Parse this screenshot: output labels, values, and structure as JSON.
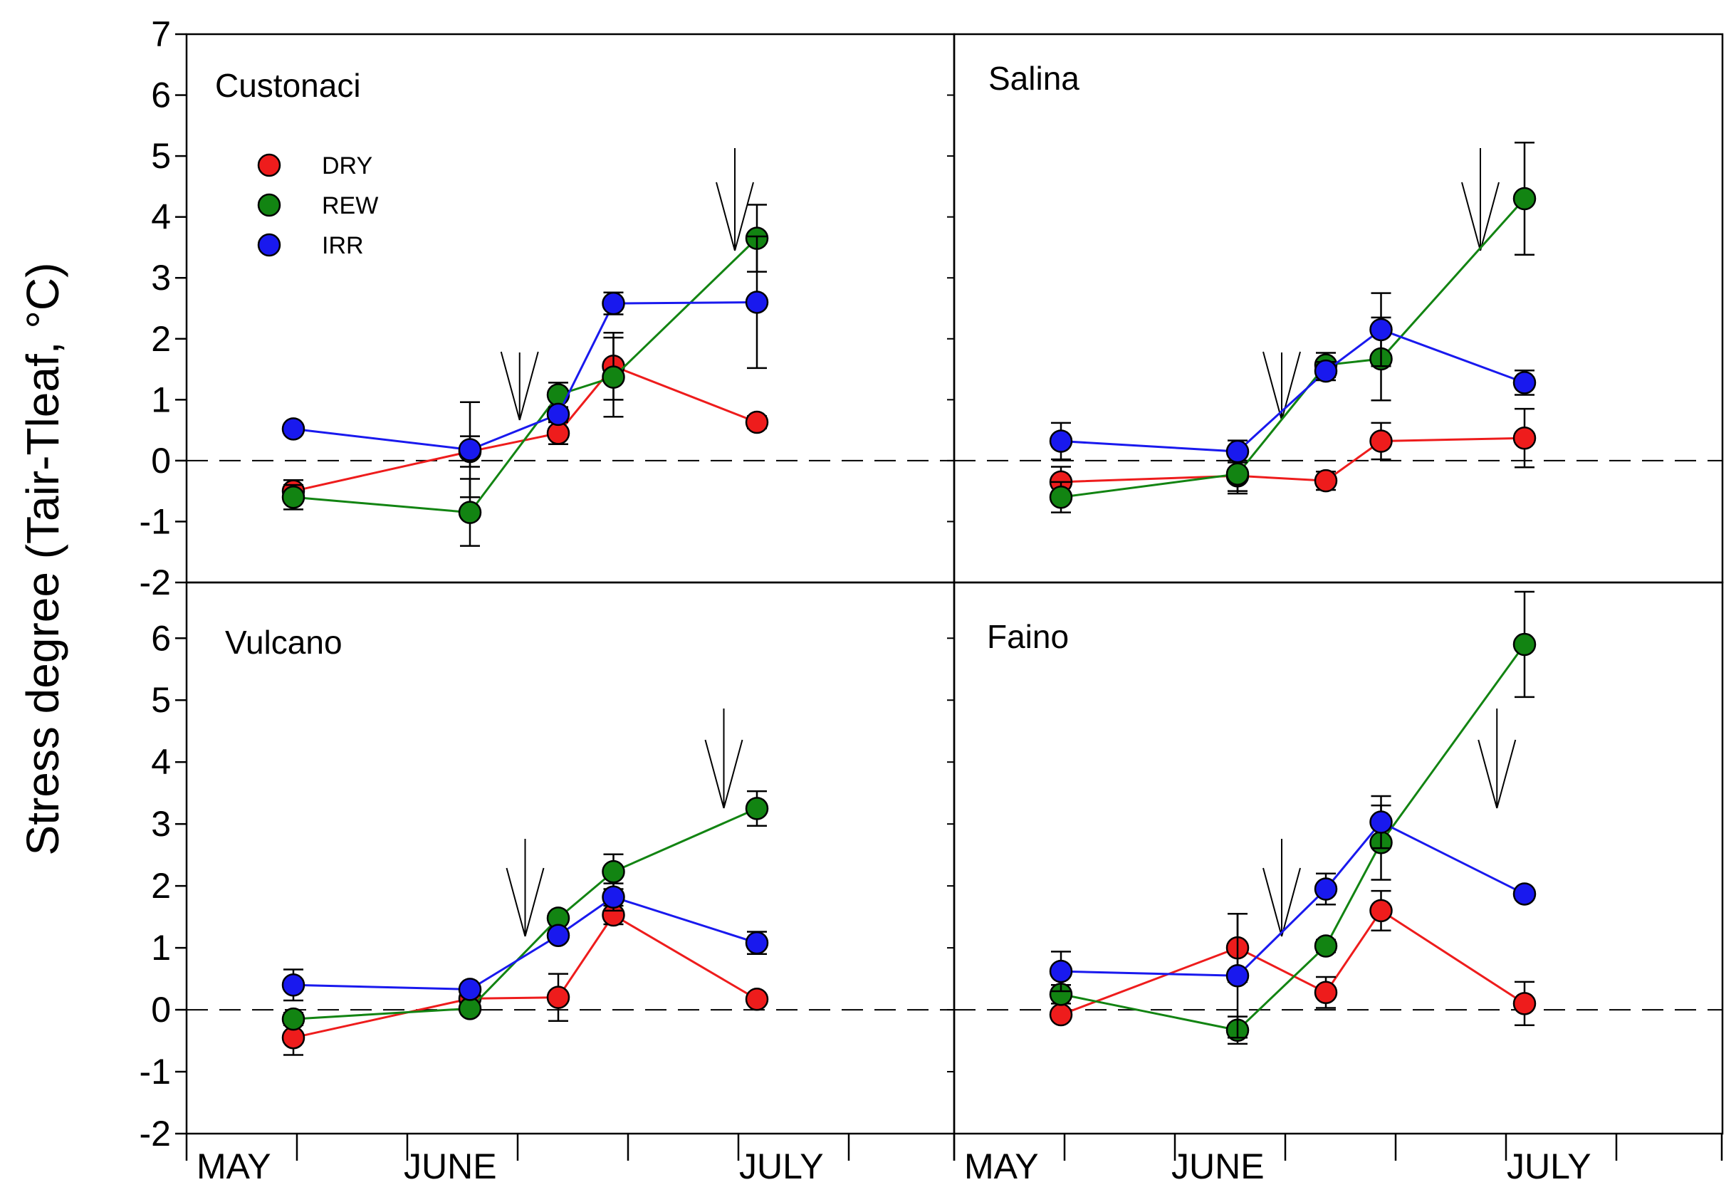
{
  "ylabel": "Stress degree (Tair-Tleaf, °C)",
  "x_month_labels": [
    "MAY",
    "JUNE",
    "JULY"
  ],
  "legend": [
    {
      "label": "DRY",
      "color": "#ee1c1c"
    },
    {
      "label": "REW",
      "color": "#128412"
    },
    {
      "label": "IRR",
      "color": "#1919ee"
    }
  ],
  "chart_data": [
    {
      "type": "line",
      "title": "Custonaci",
      "xlabel": "",
      "ylabel": "Stress degree (Tair-Tleaf, °C)",
      "ylim": [
        -2,
        7
      ],
      "yticks": [
        "-2",
        "-1",
        "0",
        "1",
        "2",
        "3",
        "4",
        "5",
        "6",
        "7"
      ],
      "x": [
        0.0,
        1.6,
        2.4,
        2.9,
        4.2
      ],
      "series": [
        {
          "name": "DRY",
          "color": "#ee1c1c",
          "values": [
            -0.5,
            0.15,
            0.45,
            1.55,
            0.63
          ],
          "errors": [
            0.18,
            0.25,
            0.18,
            0.55,
            0.1
          ]
        },
        {
          "name": "REW",
          "color": "#128412",
          "values": [
            -0.6,
            -0.85,
            1.08,
            1.37,
            3.65
          ],
          "errors": [
            0.2,
            0.55,
            0.2,
            0.65,
            0.55
          ]
        },
        {
          "name": "IRR",
          "color": "#1919ee",
          "values": [
            0.52,
            0.18,
            0.76,
            2.58,
            2.6
          ],
          "errors": [
            0.08,
            0.78,
            0.1,
            0.18,
            1.08
          ]
        }
      ],
      "arrows_at_x": [
        2.05,
        4.0
      ]
    },
    {
      "type": "line",
      "title": "Salina",
      "xlabel": "",
      "ylabel": "",
      "ylim": [
        -2,
        7
      ],
      "x": [
        0.0,
        1.6,
        2.4,
        2.9,
        4.2
      ],
      "series": [
        {
          "name": "DRY",
          "color": "#ee1c1c",
          "values": [
            -0.35,
            -0.25,
            -0.33,
            0.32,
            0.37
          ],
          "errors": [
            0.25,
            0.25,
            0.15,
            0.3,
            0.48
          ]
        },
        {
          "name": "REW",
          "color": "#128412",
          "values": [
            -0.6,
            -0.22,
            1.57,
            1.67,
            4.3
          ],
          "errors": [
            0.25,
            0.32,
            0.2,
            0.68,
            0.92
          ]
        },
        {
          "name": "IRR",
          "color": "#1919ee",
          "values": [
            0.32,
            0.15,
            1.47,
            2.15,
            1.28
          ],
          "errors": [
            0.3,
            0.18,
            0.15,
            0.6,
            0.2
          ]
        }
      ],
      "arrows_at_x": [
        2.0,
        3.8
      ]
    },
    {
      "type": "line",
      "title": "Vulcano",
      "xlabel": "",
      "ylabel": "Stress degree (Tair-Tleaf, °C)",
      "ylim": [
        -2,
        7
      ],
      "yticks": [
        "-2",
        "-1",
        "0",
        "1",
        "2",
        "3",
        "4",
        "5",
        "6"
      ],
      "x": [
        0.0,
        1.6,
        2.4,
        2.9,
        4.2
      ],
      "series": [
        {
          "name": "DRY",
          "color": "#ee1c1c",
          "values": [
            -0.45,
            0.18,
            0.2,
            1.53,
            0.17
          ],
          "errors": [
            0.28,
            0.05,
            0.38,
            0.15,
            0.08
          ]
        },
        {
          "name": "REW",
          "color": "#128412",
          "values": [
            -0.15,
            0.02,
            1.48,
            2.23,
            3.25
          ],
          "errors": [
            0.1,
            0.05,
            0.05,
            0.28,
            0.28
          ]
        },
        {
          "name": "IRR",
          "color": "#1919ee",
          "values": [
            0.4,
            0.33,
            1.2,
            1.82,
            1.08
          ],
          "errors": [
            0.25,
            0.05,
            0.05,
            0.22,
            0.18
          ]
        }
      ],
      "arrows_at_x": [
        2.1,
        3.9
      ]
    },
    {
      "type": "line",
      "title": "Faino",
      "xlabel": "",
      "ylabel": "",
      "ylim": [
        -2,
        7
      ],
      "x": [
        0.0,
        1.6,
        2.4,
        2.9,
        4.2
      ],
      "series": [
        {
          "name": "DRY",
          "color": "#ee1c1c",
          "values": [
            -0.08,
            1.0,
            0.28,
            1.6,
            0.1
          ],
          "errors": [
            0.05,
            0.55,
            0.25,
            0.32,
            0.35
          ]
        },
        {
          "name": "REW",
          "color": "#128412",
          "values": [
            0.25,
            -0.33,
            1.03,
            2.7,
            5.9
          ],
          "errors": [
            0.15,
            0.22,
            0.1,
            0.6,
            0.85
          ]
        },
        {
          "name": "IRR",
          "color": "#1919ee",
          "values": [
            0.62,
            0.55,
            1.95,
            3.03,
            1.87
          ],
          "errors": [
            0.32,
            1.0,
            0.25,
            0.42,
            0.08
          ]
        }
      ],
      "arrows_at_x": [
        2.0,
        3.95
      ]
    }
  ]
}
